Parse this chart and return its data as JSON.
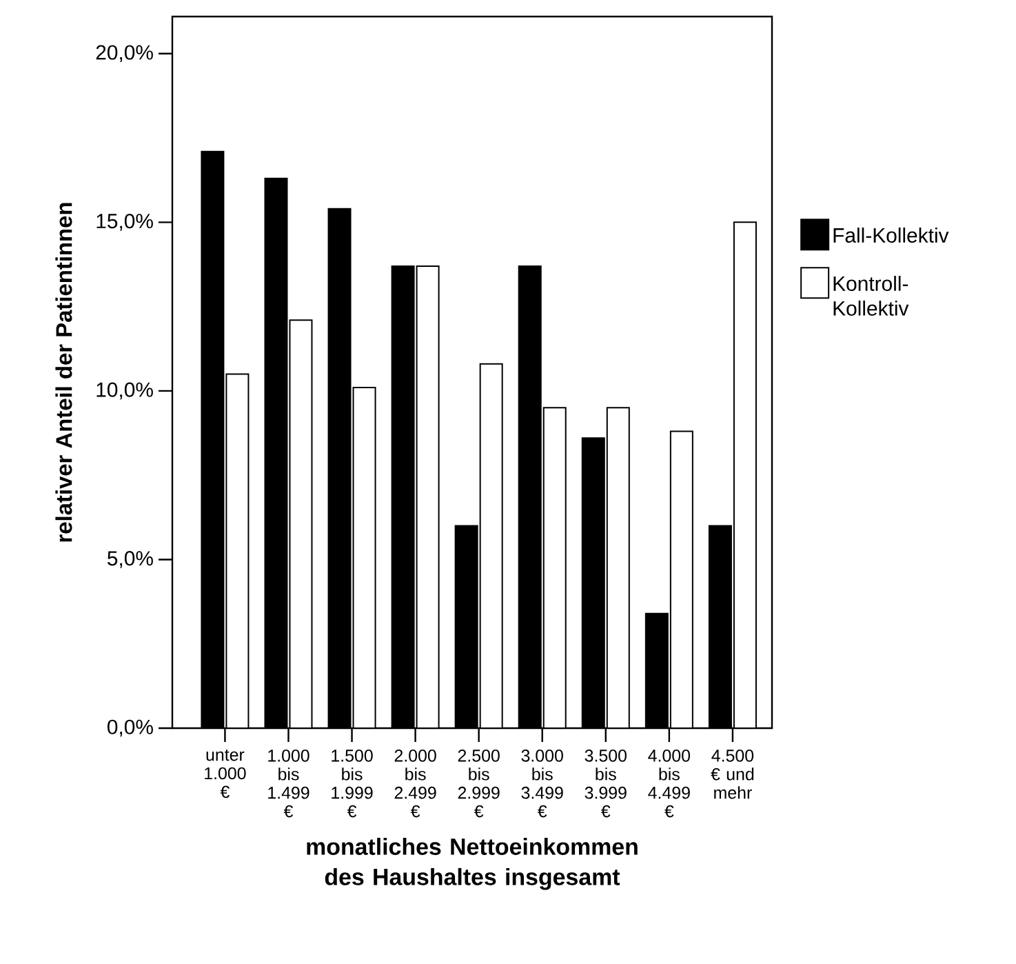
{
  "chart_data": {
    "type": "bar",
    "categories": [
      "unter 1.000 €",
      "1.000 bis 1.499 €",
      "1.500 bis 1.999 €",
      "2.000 bis 2.499 €",
      "2.500 bis 2.999 €",
      "3.000 bis 3.499 €",
      "3.500 bis 3.999 €",
      "4.000 bis 4.499 €",
      "4.500 € und mehr"
    ],
    "series": [
      {
        "name": "Fall-Kollektiv",
        "color": "#000000",
        "values": [
          17.1,
          16.3,
          15.4,
          13.7,
          6.0,
          13.7,
          8.6,
          3.4,
          6.0
        ]
      },
      {
        "name": "Kontroll-Kollektiv",
        "color": "#ffffff",
        "values": [
          10.5,
          12.1,
          10.1,
          13.7,
          10.8,
          9.5,
          9.5,
          8.8,
          15.0
        ]
      }
    ],
    "xlabel": "monatliches Nettoeinkommen des Haushaltes insgesamt",
    "ylabel": "relativer Anteil der Patientinnen",
    "ylim": [
      0,
      21.1
    ],
    "yticks": [
      {
        "value": 0,
        "label": "0,0%"
      },
      {
        "value": 5,
        "label": "5,0%"
      },
      {
        "value": 10,
        "label": "10,0%"
      },
      {
        "value": 15,
        "label": "15,0%"
      },
      {
        "value": 20,
        "label": "20,0%"
      }
    ],
    "legend": "right"
  }
}
